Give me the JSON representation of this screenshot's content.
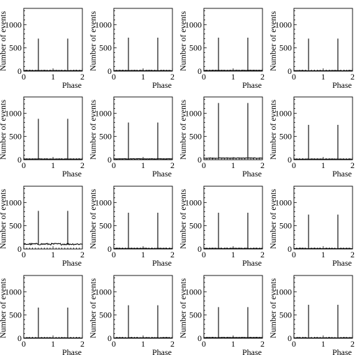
{
  "chart_data": {
    "type": "grid-of-histograms",
    "layout": {
      "rows": 4,
      "cols": 4
    },
    "xlabel": "Phase",
    "ylabel": "Number of events",
    "xlim": [
      0,
      2
    ],
    "ylim": [
      0,
      1350
    ],
    "xticks": [
      "0",
      "1",
      "2"
    ],
    "yticks": [
      "0",
      "500",
      "1000"
    ],
    "spike_phases": [
      0.5,
      1.5
    ],
    "panels": [
      {
        "spike_height": 700,
        "baseline": 12
      },
      {
        "spike_height": 720,
        "baseline": 12
      },
      {
        "spike_height": 720,
        "baseline": 15
      },
      {
        "spike_height": 700,
        "baseline": 10
      },
      {
        "spike_height": 880,
        "baseline": 15
      },
      {
        "spike_height": 800,
        "baseline": 18
      },
      {
        "spike_height": 1220,
        "baseline": 35
      },
      {
        "spike_height": 750,
        "baseline": 12
      },
      {
        "spike_height": 820,
        "baseline": 105
      },
      {
        "spike_height": 780,
        "baseline": 12
      },
      {
        "spike_height": 780,
        "baseline": 12
      },
      {
        "spike_height": 740,
        "baseline": 10
      },
      {
        "spike_height": 660,
        "baseline": 8
      },
      {
        "spike_height": 710,
        "baseline": 10
      },
      {
        "spike_height": 670,
        "baseline": 15
      },
      {
        "spike_height": 720,
        "baseline": 10
      }
    ]
  }
}
